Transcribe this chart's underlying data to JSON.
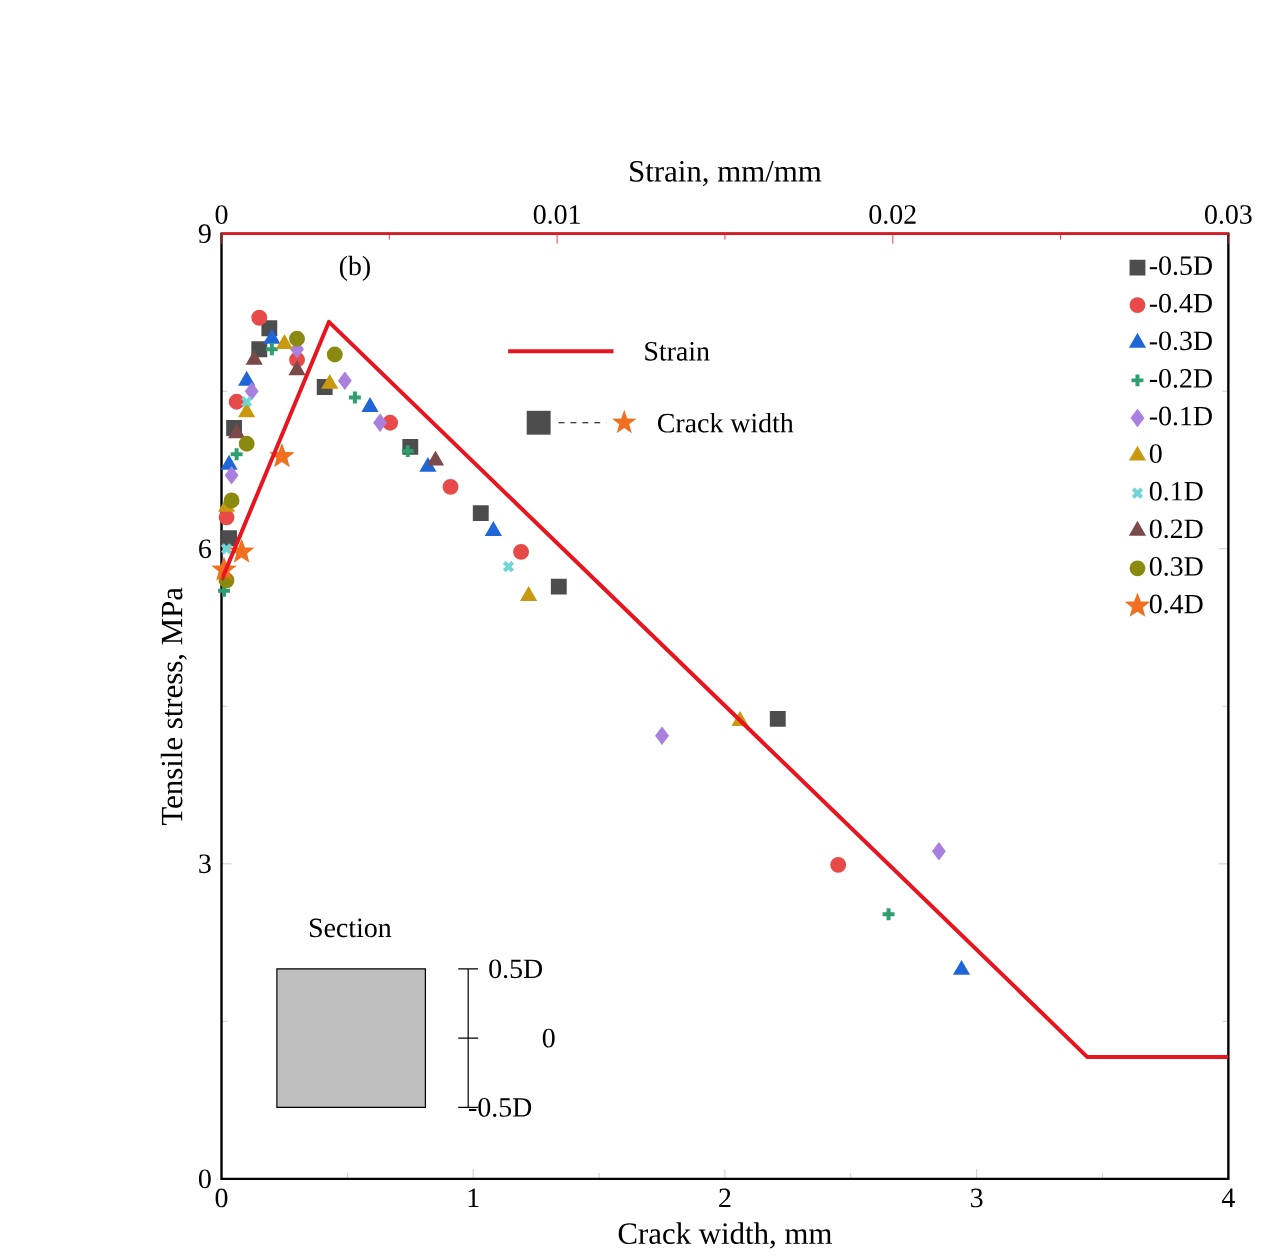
{
  "chart_data": {
    "type": "scatter",
    "xlabel": "Crack width, mm",
    "ylabel": "Tensile stress, MPa",
    "x2label": "Strain, mm/mm",
    "xlim": [
      0,
      4
    ],
    "xticks": [
      0,
      1,
      2,
      3,
      4
    ],
    "ylim": [
      0,
      9
    ],
    "yticks": [
      0,
      3,
      6,
      9
    ],
    "x2lim": [
      0,
      0.03
    ],
    "x2ticks": [
      0,
      0.01,
      0.02,
      0.03
    ],
    "grid": false,
    "legend": "top right",
    "annotations": [
      "(b)",
      "Crack width",
      "Section",
      "0.5D",
      "0",
      "-0.5D"
    ],
    "series": [
      {
        "name": "-0.5D",
        "color": "#4d4d4d",
        "marker": "square",
        "x": [
          0.03,
          0.05,
          0.15,
          0.19,
          0.41,
          0.75,
          1.03,
          1.34,
          2.21
        ],
        "values": [
          6.1,
          7.15,
          7.9,
          8.1,
          7.54,
          6.97,
          6.34,
          5.64,
          4.38
        ]
      },
      {
        "name": "-0.4D",
        "color": "#e84a4a",
        "marker": "circle",
        "x": [
          0.02,
          0.06,
          0.15,
          0.3,
          0.67,
          0.91,
          1.19,
          2.45
        ],
        "values": [
          6.3,
          7.4,
          8.2,
          7.8,
          7.2,
          6.59,
          5.97,
          2.99
        ]
      },
      {
        "name": "-0.3D",
        "color": "#1f66d6",
        "marker": "triangle",
        "x": [
          0.03,
          0.1,
          0.2,
          0.59,
          0.82,
          1.08,
          2.94
        ],
        "values": [
          6.8,
          7.6,
          8.0,
          7.35,
          6.78,
          6.17,
          1.99
        ]
      },
      {
        "name": "-0.2D",
        "color": "#2e9e6e",
        "marker": "plus",
        "x": [
          0.01,
          0.06,
          0.2,
          0.53,
          0.74,
          2.65
        ],
        "values": [
          5.6,
          6.9,
          7.9,
          7.44,
          6.93,
          2.52
        ]
      },
      {
        "name": "-0.1D",
        "color": "#a97fe0",
        "marker": "diamond",
        "x": [
          0.04,
          0.12,
          0.3,
          0.49,
          0.63,
          1.75,
          2.85
        ],
        "values": [
          6.7,
          7.5,
          7.9,
          7.6,
          7.2,
          4.22,
          3.12
        ]
      },
      {
        "name": "0",
        "color": "#c99a10",
        "marker": "triangle-left",
        "x": [
          0.02,
          0.1,
          0.25,
          0.43,
          1.22,
          2.06
        ],
        "values": [
          6.4,
          7.3,
          7.95,
          7.57,
          5.55,
          4.36
        ]
      },
      {
        "name": "0.1D",
        "color": "#6fd6d6",
        "marker": "x",
        "x": [
          0.02,
          0.1,
          1.14
        ],
        "values": [
          6.0,
          7.4,
          5.83
        ]
      },
      {
        "name": "0.2D",
        "color": "#7a4a4a",
        "marker": "triangle-right",
        "x": [
          0.06,
          0.13,
          0.3,
          0.85
        ],
        "values": [
          7.1,
          7.8,
          7.7,
          6.84
        ]
      },
      {
        "name": "0.3D",
        "color": "#8a8a10",
        "marker": "circle",
        "x": [
          0.02,
          0.04,
          0.1,
          0.3,
          0.45
        ],
        "values": [
          5.7,
          6.46,
          7.0,
          8.0,
          7.85
        ]
      },
      {
        "name": "0.4D",
        "color": "#f07020",
        "marker": "star",
        "x": [
          0.01,
          0.08,
          0.24
        ],
        "values": [
          5.8,
          5.97,
          6.88
        ]
      },
      {
        "name": "Strain",
        "type": "line",
        "axis": "x2",
        "color": "#e8141e",
        "line_style": "solid",
        "marker": "none",
        "x": [
          0,
          0.0032,
          0.0258,
          0.03
        ],
        "values": [
          5.7,
          8.16,
          1.16,
          1.16
        ]
      }
    ]
  }
}
